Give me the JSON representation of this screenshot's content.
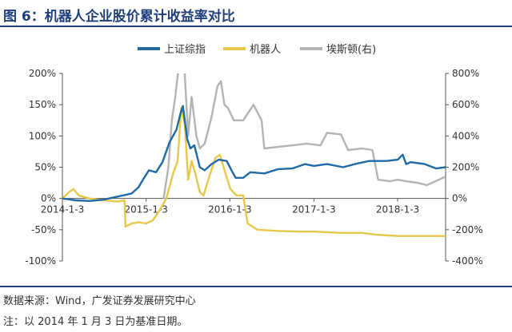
{
  "title": "图 6：机器人企业股价累计收益率对比",
  "source": "数据来源：Wind，广发证券发展研究中心",
  "note": "注：以 2014 年 1 月 3 日为基准日期。",
  "colors": {
    "sh": "#1f6aa5",
    "robot": "#e8c84a",
    "estun": "#b4b4b4",
    "title": "#1f3f7a"
  },
  "chart_data": {
    "type": "line",
    "x_range": [
      "2014-01-03",
      "2018-07-31"
    ],
    "x_ticks": [
      {
        "date": "2014-01-03",
        "label": "2014-1-3"
      },
      {
        "date": "2015-01-03",
        "label": "2015-1-3"
      },
      {
        "date": "2016-01-03",
        "label": "2016-1-3"
      },
      {
        "date": "2017-01-03",
        "label": "2017-1-3"
      },
      {
        "date": "2018-01-03",
        "label": "2018-1-3"
      }
    ],
    "y_left": {
      "range": [
        -100,
        200
      ],
      "step": 50,
      "ticks": [
        "-100%",
        "-50%",
        "0%",
        "50%",
        "100%",
        "150%",
        "200%"
      ]
    },
    "y_right": {
      "range": [
        -400,
        800
      ],
      "step": 200,
      "ticks": [
        "-400%",
        "-200%",
        "0%",
        "200%",
        "400%",
        "600%",
        "800%"
      ]
    },
    "grid": false,
    "legend_position": "top-center",
    "series": [
      {
        "name": "上证综指",
        "axis": "left",
        "points": [
          [
            "2014-01-03",
            0
          ],
          [
            "2014-03-01",
            -3
          ],
          [
            "2014-05-01",
            -4
          ],
          [
            "2014-07-01",
            -2
          ],
          [
            "2014-09-01",
            3
          ],
          [
            "2014-11-01",
            8
          ],
          [
            "2014-12-01",
            18
          ],
          [
            "2014-12-20",
            30
          ],
          [
            "2015-01-15",
            45
          ],
          [
            "2015-02-15",
            42
          ],
          [
            "2015-03-15",
            58
          ],
          [
            "2015-04-15",
            90
          ],
          [
            "2015-05-15",
            110
          ],
          [
            "2015-06-01",
            135
          ],
          [
            "2015-06-12",
            148
          ],
          [
            "2015-07-01",
            95
          ],
          [
            "2015-07-15",
            80
          ],
          [
            "2015-08-01",
            85
          ],
          [
            "2015-08-25",
            50
          ],
          [
            "2015-09-15",
            45
          ],
          [
            "2015-10-15",
            55
          ],
          [
            "2015-11-15",
            62
          ],
          [
            "2015-12-20",
            60
          ],
          [
            "2016-01-10",
            45
          ],
          [
            "2016-01-28",
            33
          ],
          [
            "2016-03-01",
            33
          ],
          [
            "2016-04-01",
            42
          ],
          [
            "2016-06-01",
            40
          ],
          [
            "2016-08-01",
            47
          ],
          [
            "2016-10-01",
            48
          ],
          [
            "2016-11-25",
            55
          ],
          [
            "2017-01-03",
            52
          ],
          [
            "2017-03-01",
            55
          ],
          [
            "2017-05-10",
            50
          ],
          [
            "2017-07-01",
            55
          ],
          [
            "2017-09-01",
            60
          ],
          [
            "2017-11-15",
            60
          ],
          [
            "2018-01-03",
            62
          ],
          [
            "2018-01-25",
            70
          ],
          [
            "2018-02-09",
            55
          ],
          [
            "2018-03-01",
            58
          ],
          [
            "2018-05-01",
            55
          ],
          [
            "2018-06-20",
            48
          ],
          [
            "2018-07-31",
            50
          ]
        ]
      },
      {
        "name": "机器人",
        "axis": "left",
        "points": [
          [
            "2014-01-03",
            0
          ],
          [
            "2014-02-01",
            10
          ],
          [
            "2014-02-20",
            15
          ],
          [
            "2014-03-15",
            5
          ],
          [
            "2014-05-01",
            0
          ],
          [
            "2014-07-01",
            -3
          ],
          [
            "2014-09-01",
            -5
          ],
          [
            "2014-10-01",
            -3
          ],
          [
            "2014-10-05",
            -45
          ],
          [
            "2014-11-01",
            -40
          ],
          [
            "2014-12-01",
            -38
          ],
          [
            "2015-01-03",
            -40
          ],
          [
            "2015-02-01",
            -35
          ],
          [
            "2015-03-01",
            -20
          ],
          [
            "2015-04-01",
            0
          ],
          [
            "2015-05-01",
            40
          ],
          [
            "2015-05-20",
            60
          ],
          [
            "2015-06-05",
            145
          ],
          [
            "2015-06-20",
            120
          ],
          [
            "2015-07-05",
            30
          ],
          [
            "2015-07-20",
            60
          ],
          [
            "2015-08-05",
            40
          ],
          [
            "2015-08-25",
            10
          ],
          [
            "2015-09-10",
            5
          ],
          [
            "2015-10-01",
            30
          ],
          [
            "2015-11-01",
            65
          ],
          [
            "2015-11-20",
            70
          ],
          [
            "2015-12-15",
            40
          ],
          [
            "2016-01-05",
            15
          ],
          [
            "2016-02-01",
            5
          ],
          [
            "2016-03-01",
            5
          ],
          [
            "2016-03-20",
            -40
          ],
          [
            "2016-05-01",
            -50
          ],
          [
            "2016-08-01",
            -52
          ],
          [
            "2016-11-01",
            -53
          ],
          [
            "2017-01-03",
            -53
          ],
          [
            "2017-05-01",
            -55
          ],
          [
            "2017-08-01",
            -55
          ],
          [
            "2017-10-01",
            -58
          ],
          [
            "2018-01-03",
            -60
          ],
          [
            "2018-04-01",
            -60
          ],
          [
            "2018-07-31",
            -60
          ]
        ]
      },
      {
        "name": "埃斯顿(右)",
        "axis": "right",
        "points": [
          [
            "2015-03-20",
            0
          ],
          [
            "2015-04-10",
            200
          ],
          [
            "2015-04-25",
            500
          ],
          [
            "2015-05-10",
            650
          ],
          [
            "2015-05-20",
            780
          ],
          [
            "2015-06-05",
            1000
          ],
          [
            "2015-06-20",
            800
          ],
          [
            "2015-07-05",
            400
          ],
          [
            "2015-07-20",
            650
          ],
          [
            "2015-08-10",
            400
          ],
          [
            "2015-08-25",
            320
          ],
          [
            "2015-09-15",
            350
          ],
          [
            "2015-10-15",
            520
          ],
          [
            "2015-11-10",
            720
          ],
          [
            "2015-11-25",
            750
          ],
          [
            "2015-12-10",
            600
          ],
          [
            "2015-12-25",
            580
          ],
          [
            "2016-01-20",
            500
          ],
          [
            "2016-03-01",
            500
          ],
          [
            "2016-04-15",
            600
          ],
          [
            "2016-05-20",
            500
          ],
          [
            "2016-06-01",
            320
          ],
          [
            "2016-08-01",
            330
          ],
          [
            "2016-10-01",
            340
          ],
          [
            "2016-12-01",
            350
          ],
          [
            "2017-02-01",
            340
          ],
          [
            "2017-03-01",
            420
          ],
          [
            "2017-05-01",
            410
          ],
          [
            "2017-06-01",
            310
          ],
          [
            "2017-08-01",
            320
          ],
          [
            "2017-09-15",
            310
          ],
          [
            "2017-10-10",
            120
          ],
          [
            "2017-12-01",
            110
          ],
          [
            "2018-01-03",
            120
          ],
          [
            "2018-02-09",
            110
          ],
          [
            "2018-04-01",
            100
          ],
          [
            "2018-05-10",
            85
          ],
          [
            "2018-07-31",
            140
          ]
        ]
      }
    ]
  }
}
